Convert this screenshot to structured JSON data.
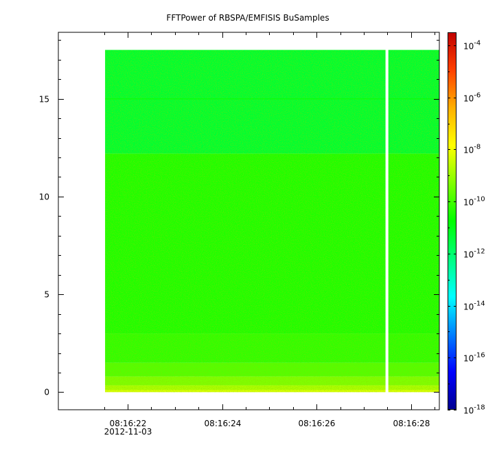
{
  "chart_data": {
    "type": "heatmap",
    "title": "FFTPower of RBSPA/EMFISIS  BuSamples",
    "xlabel": "",
    "ylabel": "",
    "x_range": [
      "08:16:20.53",
      "08:16:28.60"
    ],
    "y_range": [
      -0.9,
      18.4
    ],
    "x_ticks": [
      {
        "value": "08:16:22",
        "label": "08:16:22",
        "sublabel": "2012-11-03"
      },
      {
        "value": "08:16:24",
        "label": "08:16:24",
        "sublabel": ""
      },
      {
        "value": "08:16:26",
        "label": "08:16:26",
        "sublabel": ""
      },
      {
        "value": "08:16:28",
        "label": "08:16:28",
        "sublabel": ""
      }
    ],
    "x_minor_ticks": [
      "08:16:21.5",
      "08:16:22.5",
      "08:16:23",
      "08:16:23.5",
      "08:16:24.5",
      "08:16:25",
      "08:16:25.5",
      "08:16:26.5",
      "08:16:27",
      "08:16:27.5",
      "08:16:28.5"
    ],
    "y_ticks": [
      0,
      5,
      10,
      15
    ],
    "y_minor_ticks": [
      1,
      2,
      3,
      4,
      6,
      7,
      8,
      9,
      11,
      12,
      13,
      14,
      16,
      17,
      18
    ],
    "data_extent": {
      "x_start": "08:16:21.52",
      "x_end": "08:16:28.60",
      "y_min": 0.0,
      "y_max": 17.5
    },
    "gap": {
      "x_start": "08:16:27.46",
      "x_end": "08:16:27.52"
    },
    "bands": [
      {
        "y_from": 0.0,
        "y_to": 0.12,
        "log10_power": -8.3
      },
      {
        "y_from": 0.12,
        "y_to": 0.35,
        "log10_power": -8.8
      },
      {
        "y_from": 0.35,
        "y_to": 0.8,
        "log10_power": -9.3
      },
      {
        "y_from": 0.8,
        "y_to": 1.5,
        "log10_power": -9.8
      },
      {
        "y_from": 1.5,
        "y_to": 3.0,
        "log10_power": -10.2
      },
      {
        "y_from": 3.0,
        "y_to": 12.2,
        "log10_power": -10.4
      },
      {
        "y_from": 12.2,
        "y_to": 17.5,
        "log10_power": -11.3
      }
    ],
    "colorbar": {
      "scale": "log",
      "range_log10": [
        -18,
        -3.5
      ],
      "ticks": [
        {
          "exp": -4,
          "label_base": "10",
          "label_exp": "-4"
        },
        {
          "exp": -6,
          "label_base": "10",
          "label_exp": "-6"
        },
        {
          "exp": -8,
          "label_base": "10",
          "label_exp": "-8"
        },
        {
          "exp": -10,
          "label_base": "10",
          "label_exp": "-10"
        },
        {
          "exp": -12,
          "label_base": "10",
          "label_exp": "-12"
        },
        {
          "exp": -14,
          "label_base": "10",
          "label_exp": "-14"
        },
        {
          "exp": -16,
          "label_base": "10",
          "label_exp": "-16"
        },
        {
          "exp": -18,
          "label_base": "10",
          "label_exp": "-18"
        }
      ],
      "colors": [
        "#00008f",
        "#0000ff",
        "#0080ff",
        "#00ffff",
        "#00ff80",
        "#00ff00",
        "#80ff00",
        "#ffff00",
        "#ffb000",
        "#ff4000",
        "#c00000"
      ]
    },
    "grid": false,
    "legend": "none"
  }
}
